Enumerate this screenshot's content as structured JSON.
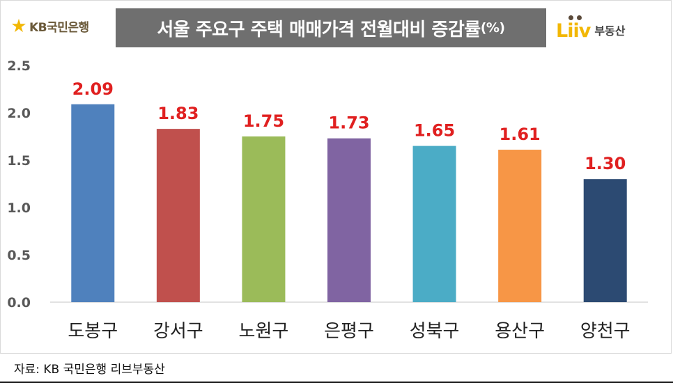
{
  "header": {
    "left_logo_text": "KB국민은행",
    "left_logo_icon": "kb-star-icon",
    "title_main": "서울 주요구 주택 매매가격 전월대비 증감률",
    "title_unit": "(%)",
    "right_logo_word": "Liiv",
    "right_logo_sub": "부동산"
  },
  "chart_data": {
    "type": "bar",
    "title": "서울 주요구 주택 매매가격 전월대비 증감률(%)",
    "categories": [
      "도봉구",
      "강서구",
      "노원구",
      "은평구",
      "성북구",
      "용산구",
      "양천구"
    ],
    "values": [
      2.09,
      1.83,
      1.75,
      1.73,
      1.65,
      1.61,
      1.3
    ],
    "value_labels": [
      "2.09",
      "1.83",
      "1.75",
      "1.73",
      "1.65",
      "1.61",
      "1.30"
    ],
    "colors": [
      "#4f81bd",
      "#c0504d",
      "#9bbb59",
      "#8064a2",
      "#4bacc6",
      "#f79646",
      "#2c4a72"
    ],
    "label_color": "#e02020",
    "ylim": [
      0,
      2.5
    ],
    "yticks": [
      "0.0",
      "0.5",
      "1.0",
      "1.5",
      "2.0",
      "2.5"
    ],
    "xlabel": "",
    "ylabel": "",
    "grid": false,
    "legend": "none"
  },
  "footer": {
    "source": "자료: KB 국민은행  리브부동산"
  }
}
